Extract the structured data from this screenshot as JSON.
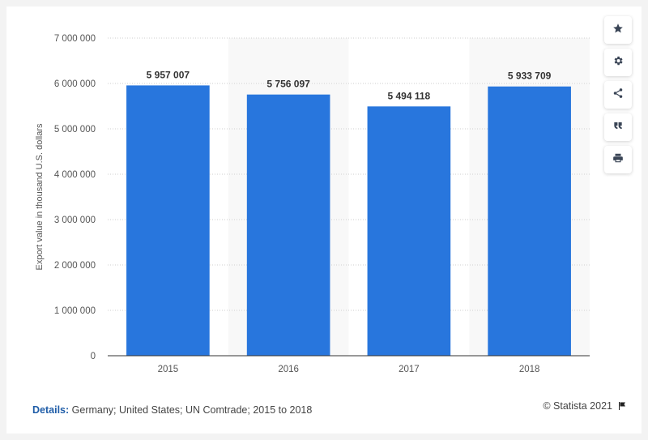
{
  "chart_data": {
    "type": "bar",
    "categories": [
      "2015",
      "2016",
      "2017",
      "2018"
    ],
    "values": [
      5957007,
      5756097,
      5494118,
      5933709
    ],
    "data_labels": [
      "5 957 007",
      "5 756 097",
      "5 494 118",
      "5 933 709"
    ],
    "ylabel": "Export value in thousand U.S. dollars",
    "xlabel": "",
    "ylim": [
      0,
      7000000
    ],
    "yticks": [
      0,
      1000000,
      2000000,
      3000000,
      4000000,
      5000000,
      6000000,
      7000000
    ],
    "ytick_labels": [
      "0",
      "1 000 000",
      "2 000 000",
      "3 000 000",
      "4 000 000",
      "5 000 000",
      "6 000 000",
      "7 000 000"
    ],
    "grid": true,
    "bar_color": "#2876dd",
    "band_color": "#f8f8f8"
  },
  "footer": {
    "details_label": "Details:",
    "details_text": "Germany; United States; UN Comtrade; 2015 to 2018",
    "brand": "© Statista 2021"
  },
  "sidebar": {
    "buttons": [
      {
        "icon": "star-icon"
      },
      {
        "icon": "gear-icon"
      },
      {
        "icon": "share-icon"
      },
      {
        "icon": "quote-icon"
      },
      {
        "icon": "print-icon"
      }
    ]
  }
}
